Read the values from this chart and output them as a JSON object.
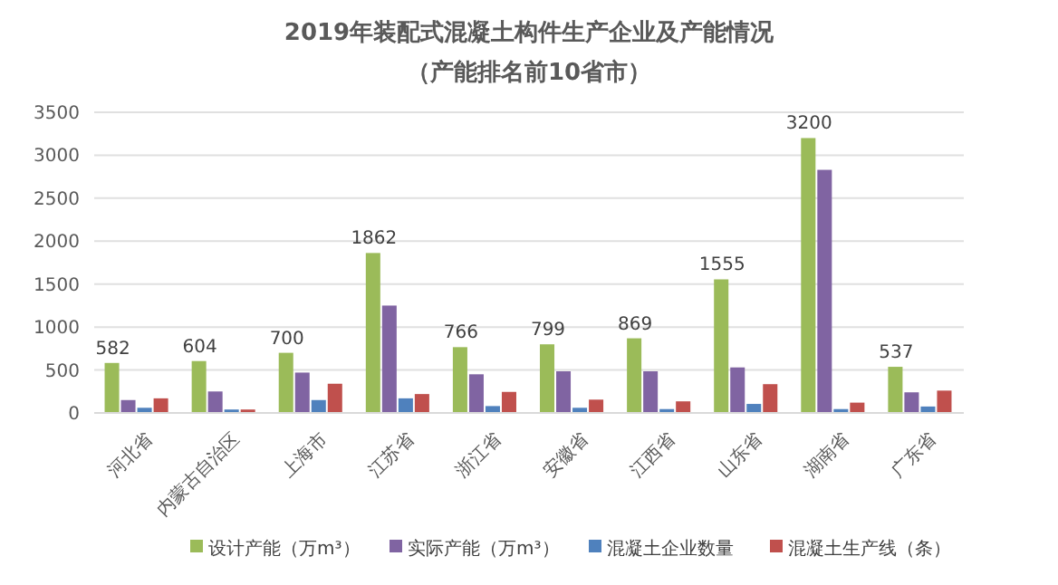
{
  "chart_data": {
    "type": "bar",
    "title": "2019年装配式混凝土构件生产企业及产能情况",
    "subtitle": "（产能排名前10省市）",
    "categories": [
      "河北省",
      "内蒙古自治区",
      "上海市",
      "江苏省",
      "浙江省",
      "安徽省",
      "江西省",
      "山东省",
      "湖南省",
      "广东省"
    ],
    "series": [
      {
        "name": "设计产能（万m³）",
        "color": "#9bbb59",
        "values": [
          582,
          604,
          700,
          1862,
          766,
          799,
          869,
          1555,
          3200,
          537
        ],
        "value_labels": [
          "582",
          "604",
          "700",
          "1862",
          "766",
          "799",
          "869",
          "1555",
          "3200",
          "537"
        ]
      },
      {
        "name": "实际产能（万m³）",
        "color": "#8064a2",
        "values": [
          150,
          250,
          470,
          1250,
          450,
          485,
          485,
          530,
          2830,
          240
        ]
      },
      {
        "name": "混凝土企业数量",
        "color": "#4f81bd",
        "values": [
          60,
          40,
          150,
          170,
          80,
          60,
          45,
          105,
          45,
          75
        ]
      },
      {
        "name": "混凝土生产线（条）",
        "color": "#c0504d",
        "values": [
          170,
          40,
          340,
          220,
          245,
          155,
          135,
          335,
          120,
          260
        ]
      }
    ],
    "ylim": [
      0,
      3500
    ],
    "yticks": [
      0,
      500,
      1000,
      1500,
      2000,
      2500,
      3000,
      3500
    ],
    "grid": "y",
    "legend": "bottom"
  }
}
